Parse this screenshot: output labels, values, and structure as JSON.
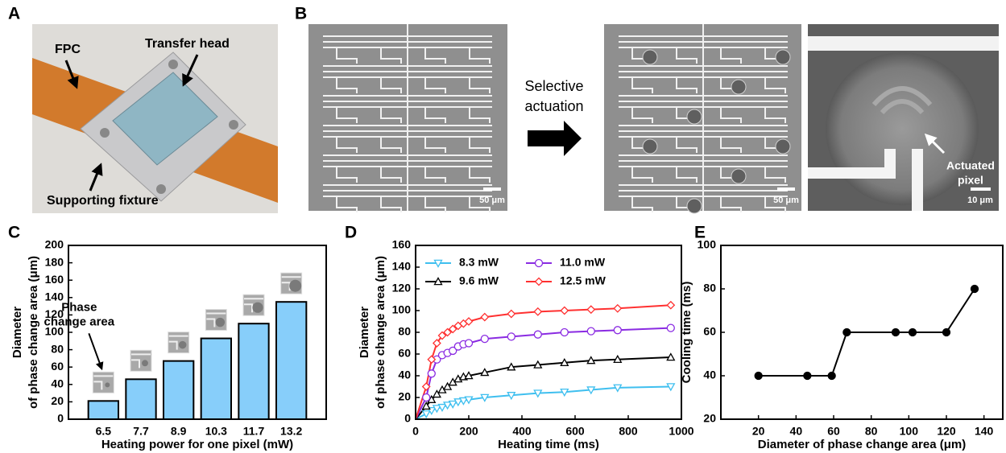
{
  "panels": {
    "a": {
      "letter": "A",
      "labels": {
        "fpc": "FPC",
        "transfer_head": "Transfer head",
        "fixture": "Supporting fixture"
      }
    },
    "b": {
      "letter": "B",
      "arrow_label": [
        "Selective",
        "actuation"
      ],
      "scale_bars": [
        "50 μm",
        "50 μm",
        "10 μm"
      ],
      "callout": [
        "Actuated",
        "pixel"
      ]
    }
  },
  "chart_data": [
    {
      "panel": "C",
      "type": "bar",
      "xlabel": "Heating power for one pixel (mW)",
      "ylabel": [
        "Diameter",
        "of phase change area (μm)"
      ],
      "categories": [
        "6.5",
        "7.7",
        "8.9",
        "10.3",
        "11.7",
        "13.2"
      ],
      "values": [
        21,
        46,
        67,
        93,
        110,
        135
      ],
      "color": "#87cefa",
      "ylim": [
        0,
        200
      ],
      "yticks": [
        0,
        20,
        40,
        60,
        80,
        100,
        120,
        140,
        160,
        180,
        200
      ],
      "annotation": [
        "Phase",
        "change area"
      ]
    },
    {
      "panel": "D",
      "type": "line",
      "xlabel": "Heating time (ms)",
      "ylabel": [
        "Diameter",
        "of phase change area (μm)"
      ],
      "x": [
        0,
        40,
        60,
        80,
        100,
        120,
        140,
        160,
        180,
        200,
        260,
        360,
        460,
        560,
        660,
        760,
        960
      ],
      "xlim": [
        0,
        1000
      ],
      "xticks": [
        0,
        200,
        400,
        600,
        800,
        1000
      ],
      "ylim": [
        0,
        160
      ],
      "yticks": [
        0,
        20,
        40,
        60,
        80,
        100,
        120,
        140,
        160
      ],
      "legend": "upper left",
      "series": [
        {
          "name": "8.3 mW",
          "color": "#3fbfef",
          "marker": "triangle-down",
          "values": [
            0,
            5,
            8,
            10,
            11,
            13,
            14,
            16,
            17,
            18,
            20,
            22,
            24,
            25,
            27,
            29,
            30
          ]
        },
        {
          "name": "9.6 mW",
          "color": "#000000",
          "marker": "triangle-up",
          "values": [
            0,
            12,
            18,
            23,
            27,
            30,
            34,
            37,
            39,
            40,
            43,
            48,
            50,
            52,
            54,
            55,
            57
          ]
        },
        {
          "name": "11.0 mW",
          "color": "#8a2be2",
          "marker": "circle",
          "values": [
            0,
            20,
            42,
            55,
            59,
            61,
            63,
            67,
            69,
            70,
            74,
            76,
            78,
            80,
            81,
            82,
            84
          ]
        },
        {
          "name": "12.5 mW",
          "color": "#ff3030",
          "marker": "diamond",
          "values": [
            0,
            30,
            55,
            70,
            77,
            80,
            83,
            86,
            88,
            90,
            94,
            97,
            99,
            100,
            101,
            102,
            105
          ]
        }
      ]
    },
    {
      "panel": "E",
      "type": "line",
      "xlabel": "Diameter of phase change area (μm)",
      "ylabel": "Cooling time (ms)",
      "x": [
        20,
        46,
        59,
        67,
        93,
        102,
        120,
        135
      ],
      "values": [
        40,
        40,
        40,
        60,
        60,
        60,
        60,
        80
      ],
      "color": "#000000",
      "xlim": [
        0,
        150
      ],
      "xticks": [
        20,
        40,
        60,
        80,
        100,
        120,
        140
      ],
      "ylim": [
        20,
        100
      ],
      "yticks": [
        20,
        40,
        60,
        80,
        100
      ]
    }
  ]
}
